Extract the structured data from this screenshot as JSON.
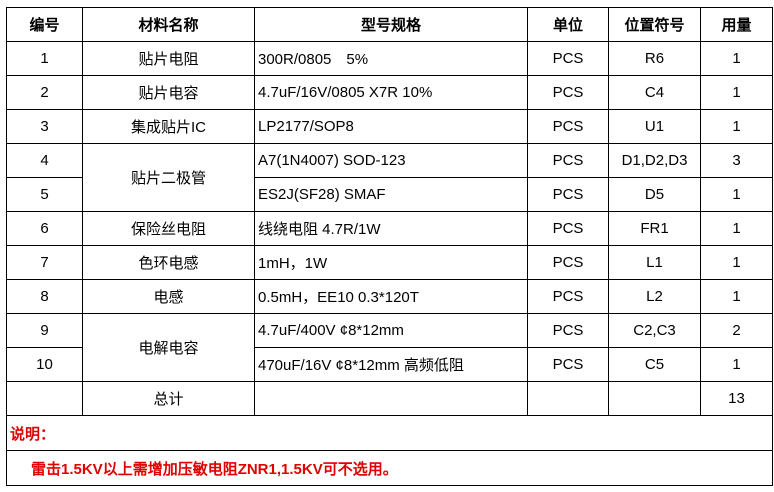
{
  "headers": [
    "编号",
    "材料名称",
    "型号规格",
    "单位",
    "位置符号",
    "用量"
  ],
  "rows": [
    {
      "no": "1",
      "name": "贴片电阻",
      "spec": "300R/0805　5%",
      "unit": "PCS",
      "ref": "R6",
      "qty": "1"
    },
    {
      "no": "2",
      "name": "贴片电容",
      "spec": "4.7uF/16V/0805  X7R 10%",
      "unit": "PCS",
      "ref": "C4",
      "qty": "1"
    },
    {
      "no": "3",
      "name": "集成贴片IC",
      "spec": "LP2177/SOP8",
      "unit": "PCS",
      "ref": "U1",
      "qty": "1"
    },
    {
      "no": "4",
      "name": "贴片二极管",
      "spec": "A7(1N4007) SOD-123",
      "unit": "PCS",
      "ref": "D1,D2,D3",
      "qty": "3"
    },
    {
      "no": "5",
      "spec": "ES2J(SF28) SMAF",
      "unit": "PCS",
      "ref": "D5",
      "qty": "1"
    },
    {
      "no": "6",
      "name": "保险丝电阻",
      "spec": "线绕电阻 4.7R/1W",
      "unit": "PCS",
      "ref": "FR1",
      "qty": "1"
    },
    {
      "no": "7",
      "name": "色环电感",
      "spec": "1mH，1W",
      "unit": "PCS",
      "ref": "L1",
      "qty": "1"
    },
    {
      "no": "8",
      "name": "电感",
      "spec": "0.5mH，EE10 0.3*120T",
      "unit": "PCS",
      "ref": "L2",
      "qty": "1"
    },
    {
      "no": "9",
      "name": "电解电容",
      "spec": "4.7uF/400V  ¢8*12mm",
      "unit": "PCS",
      "ref": "C2,C3",
      "qty": "2"
    },
    {
      "no": "10",
      "spec": "470uF/16V  ¢8*12mm 高频低阻",
      "unit": "PCS",
      "ref": "C5",
      "qty": "1"
    }
  ],
  "total": {
    "label": "总计",
    "qty": "13"
  },
  "note_label": "说明：",
  "note_text": "雷击1.5KV以上需增加压敏电阻ZNR1,1.5KV可不选用。",
  "colors": {
    "note": "#e00000"
  }
}
